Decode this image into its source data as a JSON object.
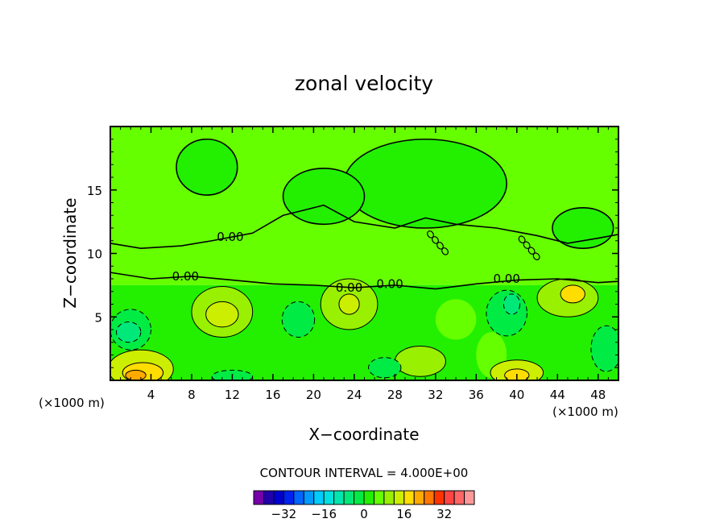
{
  "chart_data": {
    "type": "heatmap",
    "title": "zonal velocity",
    "xlabel": "X−coordinate",
    "ylabel": "Z−coordinate",
    "x_unit": "(×1000 m)",
    "y_unit": "(×1000 m)",
    "xlim": [
      0,
      50
    ],
    "ylim": [
      0,
      20
    ],
    "x_ticks": [
      4,
      8,
      12,
      16,
      20,
      24,
      28,
      32,
      36,
      40,
      44,
      48
    ],
    "x_tick_labels": [
      "4",
      "8",
      "12",
      "16",
      "20",
      "24",
      "28",
      "32",
      "36",
      "40",
      "44",
      "48"
    ],
    "y_ticks": [
      5,
      10,
      15
    ],
    "y_tick_labels": [
      "5",
      "10",
      "15"
    ],
    "contour_interval_text": "CONTOUR INTERVAL = 4.000E+00",
    "contour_labels": [
      {
        "text": "0.00",
        "x": 11.8,
        "z": 11.3
      },
      {
        "text": "0.00",
        "x": 7.4,
        "z": 8.2
      },
      {
        "text": "0.00",
        "x": 23.5,
        "z": 7.3
      },
      {
        "text": "0.00",
        "x": 27.5,
        "z": 7.6
      },
      {
        "text": "0.00",
        "x": 39.0,
        "z": 8.0
      }
    ],
    "contour_diag_labels": [
      {
        "x": 31.5,
        "z": 11.5
      },
      {
        "x": 40.5,
        "z": 11.1
      }
    ],
    "regions": [
      {
        "shape": "rect",
        "x": 0,
        "z": 7.5,
        "w": 50,
        "h": 12.5,
        "level": 1
      },
      {
        "shape": "ellipse",
        "x": 9.5,
        "z": 16.8,
        "rx": 3.0,
        "ry": 2.2,
        "level": 0
      },
      {
        "shape": "ellipse",
        "x": 31.0,
        "z": 15.5,
        "rx": 8.0,
        "ry": 3.5,
        "level": 0
      },
      {
        "shape": "ellipse",
        "x": 46.5,
        "z": 12.0,
        "rx": 3.0,
        "ry": 1.6,
        "level": 0
      },
      {
        "shape": "ellipse",
        "x": 21.0,
        "z": 14.5,
        "rx": 4.0,
        "ry": 2.2,
        "level": 0
      },
      {
        "shape": "rect",
        "x": 0,
        "z": 0,
        "w": 50,
        "h": 7.5,
        "level": 0
      },
      {
        "shape": "ellipse",
        "x": 11.0,
        "z": 5.4,
        "rx": 3.0,
        "ry": 2.0,
        "level": 2
      },
      {
        "shape": "ellipse",
        "x": 11.0,
        "z": 5.2,
        "rx": 1.6,
        "ry": 1.0,
        "level": 3
      },
      {
        "shape": "ellipse",
        "x": 23.5,
        "z": 6.0,
        "rx": 2.8,
        "ry": 2.0,
        "level": 2
      },
      {
        "shape": "ellipse",
        "x": 23.5,
        "z": 6.0,
        "rx": 1.0,
        "ry": 0.8,
        "level": 3
      },
      {
        "shape": "ellipse",
        "x": 45.0,
        "z": 6.5,
        "rx": 3.0,
        "ry": 1.5,
        "level": 2
      },
      {
        "shape": "ellipse",
        "x": 45.5,
        "z": 6.8,
        "rx": 1.2,
        "ry": 0.7,
        "level": 4
      },
      {
        "shape": "ellipse",
        "x": 34.0,
        "z": 4.8,
        "rx": 2.0,
        "ry": 1.6,
        "level": 1
      },
      {
        "shape": "ellipse",
        "x": 30.5,
        "z": 1.5,
        "rx": 2.5,
        "ry": 1.2,
        "level": 2
      },
      {
        "shape": "ellipse",
        "x": 37.5,
        "z": 2.0,
        "rx": 1.5,
        "ry": 1.8,
        "level": 1
      },
      {
        "shape": "ellipse",
        "x": 3.0,
        "z": 0.9,
        "rx": 3.2,
        "ry": 1.5,
        "level": 3
      },
      {
        "shape": "ellipse",
        "x": 3.2,
        "z": 0.6,
        "rx": 2.0,
        "ry": 0.8,
        "level": 4
      },
      {
        "shape": "ellipse",
        "x": 2.5,
        "z": 0.4,
        "rx": 1.0,
        "ry": 0.4,
        "level": 5
      },
      {
        "shape": "ellipse",
        "x": 40.0,
        "z": 0.6,
        "rx": 2.6,
        "ry": 1.0,
        "level": 3
      },
      {
        "shape": "ellipse",
        "x": 40.0,
        "z": 0.4,
        "rx": 1.2,
        "ry": 0.5,
        "level": 4
      },
      {
        "shape": "ellipse",
        "x": 2.0,
        "z": 4.0,
        "rx": 2.0,
        "ry": 1.6,
        "level": -1
      },
      {
        "shape": "ellipse",
        "x": 1.8,
        "z": 3.8,
        "rx": 1.2,
        "ry": 0.8,
        "level": -2
      },
      {
        "shape": "ellipse",
        "x": 18.5,
        "z": 4.8,
        "rx": 1.6,
        "ry": 1.4,
        "level": -1
      },
      {
        "shape": "ellipse",
        "x": 39.0,
        "z": 5.3,
        "rx": 2.0,
        "ry": 1.8,
        "level": -1
      },
      {
        "shape": "ellipse",
        "x": 39.5,
        "z": 6.0,
        "rx": 0.8,
        "ry": 0.8,
        "level": -2
      },
      {
        "shape": "ellipse",
        "x": 27.0,
        "z": 1.0,
        "rx": 1.6,
        "ry": 0.8,
        "level": -1
      },
      {
        "shape": "ellipse",
        "x": 48.8,
        "z": 2.5,
        "rx": 1.5,
        "ry": 1.8,
        "level": -1
      },
      {
        "shape": "ellipse",
        "x": 12.0,
        "z": 0.3,
        "rx": 2.0,
        "ry": 0.5,
        "level": -1
      }
    ],
    "colorbar": {
      "colors": [
        "#7700aa",
        "#2200aa",
        "#0000cc",
        "#0022ee",
        "#0066ff",
        "#0099ff",
        "#00ccff",
        "#00e0e0",
        "#00e6b0",
        "#00e87a",
        "#00ec44",
        "#22f000",
        "#66ff00",
        "#99f000",
        "#ccee00",
        "#ffdd00",
        "#ffaa00",
        "#ff7700",
        "#ff3300",
        "#ff4444",
        "#ff6666",
        "#ff9999"
      ],
      "tick_labels": [
        "−32",
        "−16",
        "0",
        "16",
        "32"
      ],
      "tick_values": [
        -32,
        -16,
        0,
        16,
        32
      ],
      "min": -44,
      "max": 44
    }
  }
}
